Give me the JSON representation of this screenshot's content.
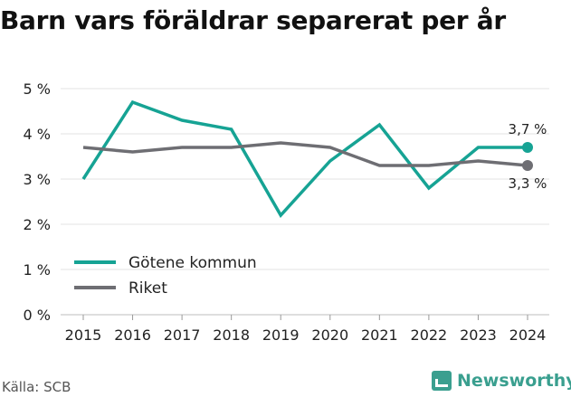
{
  "title": "Barn vars föräldrar separerat per år",
  "source": "Källa: SCB",
  "brand": {
    "name": "Newsworthy",
    "icon": "bar-chart-icon",
    "color": "#3a9f8f"
  },
  "chart_data": {
    "type": "line",
    "title": "Barn vars föräldrar separerat per år",
    "x": [
      2015,
      2016,
      2017,
      2018,
      2019,
      2020,
      2021,
      2022,
      2023,
      2024
    ],
    "y_ticks": [
      "0 %",
      "1 %",
      "2 %",
      "3 %",
      "4 %",
      "5 %"
    ],
    "ylim": [
      0,
      5
    ],
    "unit": "%",
    "grid": true,
    "legend_position": "bottom-left",
    "series": [
      {
        "name": "Götene kommun",
        "color": "#16a394",
        "values": [
          3.0,
          4.7,
          4.3,
          4.1,
          2.2,
          3.4,
          4.2,
          2.8,
          3.7,
          3.7
        ],
        "end_label": "3,7 %"
      },
      {
        "name": "Riket",
        "color": "#6e6e73",
        "values": [
          3.7,
          3.6,
          3.7,
          3.7,
          3.8,
          3.7,
          3.3,
          3.3,
          3.4,
          3.3
        ],
        "end_label": "3,3 %"
      }
    ]
  }
}
